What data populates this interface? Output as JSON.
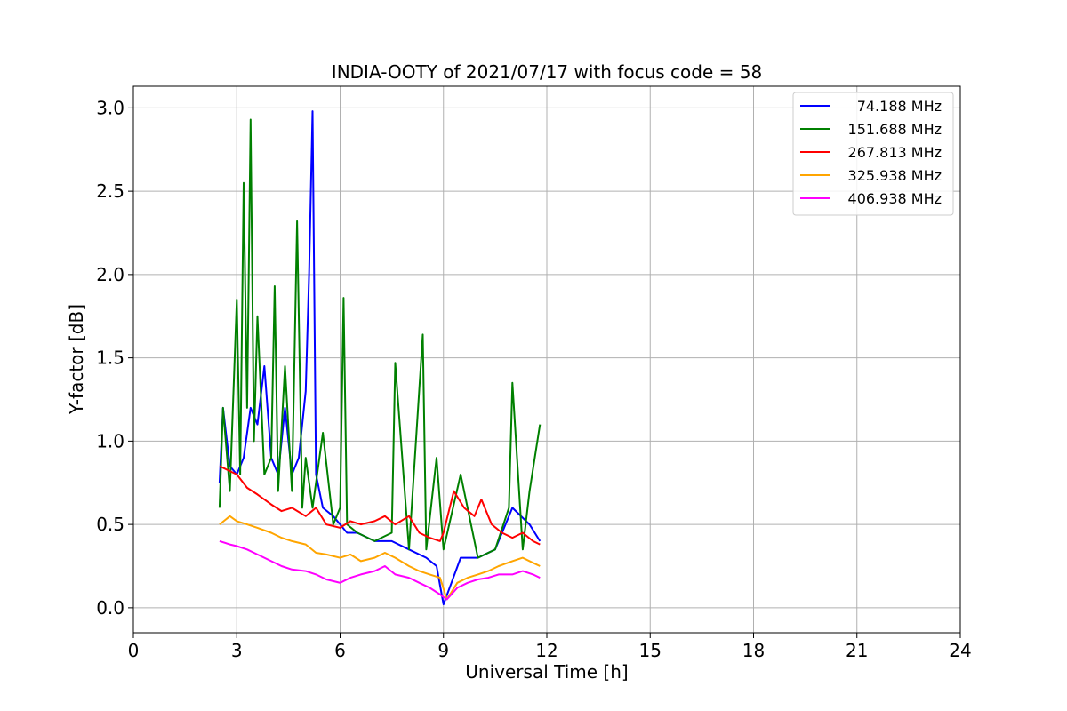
{
  "chart_data": {
    "type": "line",
    "title": "INDIA-OOTY of 2021/07/17 with focus code = 58",
    "xlabel": "Universal Time [h]",
    "ylabel": "Y-factor [dB]",
    "xlim": [
      0,
      24
    ],
    "ylim": [
      -0.15,
      3.13
    ],
    "xticks": [
      0,
      3,
      6,
      9,
      12,
      15,
      18,
      21,
      24
    ],
    "yticks": [
      0.0,
      0.5,
      1.0,
      1.5,
      2.0,
      2.5,
      3.0
    ],
    "xtick_labels": [
      "0",
      "3",
      "6",
      "9",
      "12",
      "15",
      "18",
      "21",
      "24"
    ],
    "ytick_labels": [
      "0.0",
      "0.5",
      "1.0",
      "1.5",
      "2.0",
      "2.5",
      "3.0"
    ],
    "grid": true,
    "legend_position": "top-right",
    "series": [
      {
        "name": "74.188 MHz",
        "color": "#0000ff",
        "x": [
          2.5,
          2.6,
          2.8,
          3.0,
          3.2,
          3.4,
          3.6,
          3.8,
          4.0,
          4.2,
          4.4,
          4.6,
          4.8,
          5.0,
          5.1,
          5.2,
          5.3,
          5.5,
          5.8,
          6.0,
          6.2,
          6.5,
          7.0,
          7.5,
          8.0,
          8.5,
          8.8,
          9.0,
          9.5,
          10.0,
          10.5,
          11.0,
          11.5,
          11.8
        ],
        "y": [
          0.75,
          1.2,
          0.85,
          0.8,
          0.9,
          1.2,
          1.1,
          1.45,
          0.9,
          0.8,
          1.2,
          0.8,
          0.9,
          1.3,
          2.0,
          2.98,
          0.8,
          0.6,
          0.55,
          0.5,
          0.45,
          0.45,
          0.4,
          0.4,
          0.35,
          0.3,
          0.25,
          0.02,
          0.3,
          0.3,
          0.35,
          0.6,
          0.5,
          0.4
        ]
      },
      {
        "name": "151.688 MHz",
        "color": "#008000",
        "x": [
          2.5,
          2.6,
          2.8,
          3.0,
          3.1,
          3.2,
          3.3,
          3.4,
          3.5,
          3.6,
          3.8,
          4.0,
          4.1,
          4.2,
          4.4,
          4.6,
          4.75,
          4.9,
          5.0,
          5.2,
          5.5,
          5.8,
          6.0,
          6.1,
          6.2,
          6.5,
          7.0,
          7.5,
          7.6,
          8.0,
          8.4,
          8.5,
          8.8,
          9.0,
          9.5,
          10.0,
          10.5,
          10.9,
          11.0,
          11.3,
          11.5,
          11.8
        ],
        "y": [
          0.6,
          1.2,
          0.7,
          1.85,
          0.8,
          2.55,
          1.2,
          2.93,
          1.0,
          1.75,
          0.8,
          0.9,
          1.93,
          0.7,
          1.45,
          0.7,
          2.32,
          0.6,
          0.9,
          0.6,
          1.05,
          0.5,
          0.6,
          1.86,
          0.5,
          0.45,
          0.4,
          0.45,
          1.47,
          0.35,
          1.64,
          0.35,
          0.9,
          0.35,
          0.8,
          0.3,
          0.35,
          0.6,
          1.35,
          0.35,
          0.7,
          1.1
        ]
      },
      {
        "name": "267.813 MHz",
        "color": "#ff0000",
        "x": [
          2.5,
          2.8,
          3.0,
          3.3,
          3.6,
          4.0,
          4.3,
          4.6,
          5.0,
          5.3,
          5.6,
          6.0,
          6.3,
          6.6,
          7.0,
          7.3,
          7.6,
          8.0,
          8.3,
          8.6,
          8.9,
          9.0,
          9.3,
          9.6,
          9.9,
          10.1,
          10.4,
          10.7,
          11.0,
          11.3,
          11.6,
          11.8
        ],
        "y": [
          0.85,
          0.82,
          0.8,
          0.72,
          0.68,
          0.62,
          0.58,
          0.6,
          0.55,
          0.6,
          0.5,
          0.48,
          0.52,
          0.5,
          0.52,
          0.55,
          0.5,
          0.55,
          0.45,
          0.42,
          0.4,
          0.45,
          0.7,
          0.6,
          0.55,
          0.65,
          0.5,
          0.45,
          0.42,
          0.45,
          0.4,
          0.38
        ]
      },
      {
        "name": "325.938 MHz",
        "color": "#ffa500",
        "x": [
          2.5,
          2.8,
          3.0,
          3.3,
          3.6,
          4.0,
          4.3,
          4.6,
          5.0,
          5.3,
          5.6,
          6.0,
          6.3,
          6.6,
          7.0,
          7.3,
          7.6,
          8.0,
          8.3,
          8.6,
          8.9,
          9.1,
          9.4,
          9.7,
          10.0,
          10.3,
          10.6,
          11.0,
          11.3,
          11.6,
          11.8
        ],
        "y": [
          0.5,
          0.55,
          0.52,
          0.5,
          0.48,
          0.45,
          0.42,
          0.4,
          0.38,
          0.33,
          0.32,
          0.3,
          0.32,
          0.28,
          0.3,
          0.33,
          0.3,
          0.25,
          0.22,
          0.2,
          0.18,
          0.05,
          0.15,
          0.18,
          0.2,
          0.22,
          0.25,
          0.28,
          0.3,
          0.27,
          0.25
        ]
      },
      {
        "name": "406.938 MHz",
        "color": "#ff00ff",
        "x": [
          2.5,
          2.8,
          3.0,
          3.3,
          3.6,
          4.0,
          4.3,
          4.6,
          5.0,
          5.3,
          5.6,
          6.0,
          6.3,
          6.6,
          7.0,
          7.3,
          7.6,
          8.0,
          8.3,
          8.6,
          8.9,
          9.1,
          9.4,
          9.7,
          10.0,
          10.3,
          10.6,
          11.0,
          11.3,
          11.6,
          11.8
        ],
        "y": [
          0.4,
          0.38,
          0.37,
          0.35,
          0.32,
          0.28,
          0.25,
          0.23,
          0.22,
          0.2,
          0.17,
          0.15,
          0.18,
          0.2,
          0.22,
          0.25,
          0.2,
          0.18,
          0.15,
          0.12,
          0.08,
          0.05,
          0.12,
          0.15,
          0.17,
          0.18,
          0.2,
          0.2,
          0.22,
          0.2,
          0.18
        ]
      }
    ]
  }
}
